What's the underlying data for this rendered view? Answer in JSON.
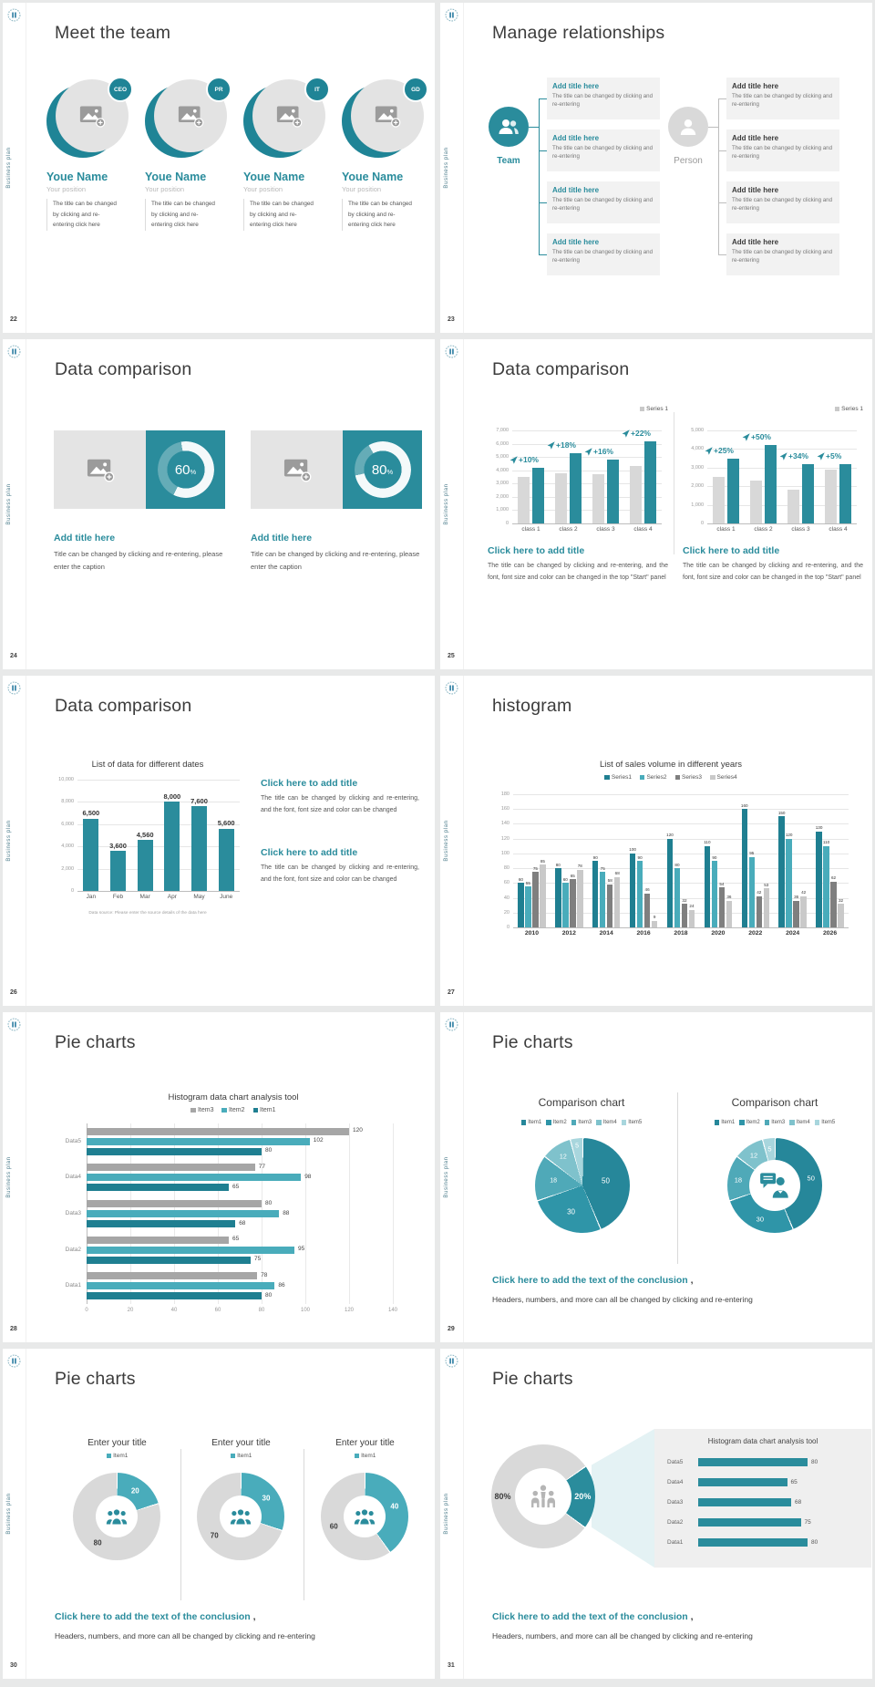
{
  "common": {
    "sidebar_text": "Business plan"
  },
  "colors": {
    "teal": "#2A8C9C",
    "teal_dark": "#1F7F91",
    "teal_light": "#49ACBB",
    "gray_bar": "#D8D8D8",
    "gray_mid": "#A6A6A6",
    "gray_dark": "#7F7F7F",
    "gray_light": "#C9C9C9",
    "donut_gray": "#D9D9D9",
    "heading": "#3B3B3B",
    "body": "#595959",
    "pie_shades": [
      "#26879A",
      "#2F95A8",
      "#4FA9B8",
      "#7FC2CC",
      "#A8D6DD"
    ]
  },
  "s22": {
    "page": "22",
    "title": "Meet the team",
    "members": [
      {
        "badge": "CEO",
        "name": "Youe Name",
        "position": "Your position",
        "desc": "The title can be changed by clicking and re-entering click here"
      },
      {
        "badge": "PR",
        "name": "Youe Name",
        "position": "Your position",
        "desc": "The title can be changed by clicking and re-entering click here"
      },
      {
        "badge": "IT",
        "name": "Youe Name",
        "position": "Your position",
        "desc": "The title can be changed by clicking and re-entering click here"
      },
      {
        "badge": "GD",
        "name": "Youe Name",
        "position": "Your position",
        "desc": "The title can be changed by clicking and re-entering click here"
      }
    ]
  },
  "s23": {
    "page": "23",
    "title": "Manage relationships",
    "team_label": "Team",
    "person_label": "Person",
    "left_boxes": [
      {
        "title": "Add title here",
        "body": "The title can be changed by clicking and re-entering"
      },
      {
        "title": "Add title here",
        "body": "The title can be changed by clicking and re-entering"
      },
      {
        "title": "Add title here",
        "body": "The title can be changed by clicking and re-entering"
      },
      {
        "title": "Add title here",
        "body": "The title can be changed by clicking and re-entering"
      }
    ],
    "right_boxes": [
      {
        "title": "Add title here",
        "body": "The title can be changed by clicking and re-entering"
      },
      {
        "title": "Add title here",
        "body": "The title can be changed by clicking and re-entering"
      },
      {
        "title": "Add title here",
        "body": "The title can be changed by clicking and re-entering"
      },
      {
        "title": "Add title here",
        "body": "The title can be changed by clicking and re-entering"
      }
    ]
  },
  "s24": {
    "page": "24",
    "title": "Data comparison",
    "cards": [
      {
        "percent": "60",
        "unit": "%",
        "heading": "Add title here",
        "body": "Title can be changed by clicking and re-entering, please enter the caption"
      },
      {
        "percent": "80",
        "unit": "%",
        "heading": "Add title here",
        "body": "Title can be changed by clicking and re-entering, please enter the caption"
      }
    ]
  },
  "s25": {
    "page": "25",
    "title": "Data comparison",
    "blocks": [
      {
        "heading": "Click here to add title",
        "body": "The title can be changed by clicking and re-entering, and the font, font size and color can be changed in the top \"Start\" panel"
      },
      {
        "heading": "Click here to add title",
        "body": "The title can be changed by clicking and re-entering, and the font, font size and color can be changed in the top \"Start\" panel"
      }
    ],
    "charts": [
      {
        "type": "bar",
        "legend": "Series 1",
        "ymax": 7000,
        "yticks": [
          "7,000",
          "6,000",
          "5,000",
          "4,000",
          "3,000",
          "2,000",
          "1,000",
          "0"
        ],
        "categories": [
          "class 1",
          "class 2",
          "class 3",
          "class 4"
        ],
        "series": [
          {
            "name": "base",
            "color": "#D8D8D8",
            "values": [
              3500,
              3800,
              3700,
              4300
            ]
          },
          {
            "name": "growth",
            "color": "#2A8C9C",
            "values": [
              4200,
              5300,
              4800,
              6200
            ]
          }
        ],
        "annotations": [
          "+10%",
          "+18%",
          "+16%",
          "+22%"
        ]
      },
      {
        "type": "bar",
        "legend": "Series 1",
        "ymax": 5000,
        "yticks": [
          "5,000",
          "4,000",
          "3,000",
          "2,000",
          "1,000",
          "0"
        ],
        "categories": [
          "class 1",
          "class 2",
          "class 3",
          "class 4"
        ],
        "series": [
          {
            "name": "base",
            "color": "#D8D8D8",
            "values": [
              2500,
              2300,
              1800,
              2900
            ]
          },
          {
            "name": "growth",
            "color": "#2A8C9C",
            "values": [
              3500,
              4200,
              3200,
              3200
            ]
          }
        ],
        "annotations": [
          "+25%",
          "+50%",
          "+34%",
          "+5%"
        ]
      }
    ]
  },
  "s26": {
    "page": "26",
    "title": "Data comparison",
    "chart": {
      "type": "bar",
      "title": "List of data for different dates",
      "ymax": 10000,
      "yticks": [
        "10,000",
        "8,000",
        "6,000",
        "4,000",
        "2,000",
        "0"
      ],
      "categories": [
        "Jan",
        "Feb",
        "Mar",
        "Apr",
        "May",
        "June"
      ],
      "values": [
        6500,
        3600,
        4560,
        8000,
        7600,
        5600
      ],
      "labels": [
        "6,500",
        "3,600",
        "4,560",
        "8,000",
        "7,600",
        "5,600"
      ],
      "source": "Data source: Please enter the source details of the data here"
    },
    "blocks": [
      {
        "heading": "Click here to add title",
        "body": "The title can be changed by clicking and re-entering, and the font, font size and color can be changed"
      },
      {
        "heading": "Click here to add title",
        "body": "The title can be changed by clicking and re-entering, and the font, font size and color can be changed"
      }
    ]
  },
  "s27": {
    "page": "27",
    "title": "histogram",
    "chart": {
      "type": "bar",
      "title": "List of sales volume in different years",
      "ymax": 180,
      "yticks": [
        "180",
        "160",
        "140",
        "120",
        "100",
        "80",
        "60",
        "40",
        "20",
        "0"
      ],
      "categories": [
        "2010",
        "2012",
        "2014",
        "2016",
        "2018",
        "2020",
        "2022",
        "2024",
        "2026"
      ],
      "series": [
        {
          "name": "Series1",
          "color": "#1F7F91",
          "values": [
            60,
            80,
            90,
            100,
            120,
            110,
            160,
            150,
            130
          ]
        },
        {
          "name": "Series2",
          "color": "#49ACBB",
          "values": [
            55,
            60,
            75,
            90,
            80,
            90,
            95,
            120,
            110
          ]
        },
        {
          "name": "Series3",
          "color": "#7F7F7F",
          "values": [
            75,
            65,
            58,
            46,
            32,
            54,
            42,
            36,
            62
          ]
        },
        {
          "name": "Series4",
          "color": "#C9C9C9",
          "values": [
            85,
            78,
            68,
            9,
            24,
            36,
            53,
            42,
            32
          ]
        }
      ]
    }
  },
  "s28": {
    "page": "28",
    "title": "Pie charts",
    "chart": {
      "type": "hbar",
      "title": "Histogram data chart analysis tool",
      "xmax": 140,
      "xticks": [
        "0",
        "20",
        "40",
        "60",
        "80",
        "100",
        "120",
        "140"
      ],
      "categories": [
        "Data5",
        "Data4",
        "Data3",
        "Data2",
        "Data1"
      ],
      "series": [
        {
          "name": "Item3",
          "color": "#A6A6A6",
          "values": [
            120,
            77,
            80,
            65,
            78
          ]
        },
        {
          "name": "Item2",
          "color": "#49ACBB",
          "values": [
            102,
            98,
            88,
            95,
            86
          ]
        },
        {
          "name": "Item1",
          "color": "#1F7F91",
          "values": [
            80,
            65,
            68,
            75,
            80
          ]
        }
      ]
    }
  },
  "s29": {
    "page": "29",
    "title": "Pie charts",
    "panels": [
      {
        "type": "pie",
        "title": "Comparison chart",
        "legend": [
          "Item1",
          "Item2",
          "Item3",
          "Item4",
          "Item5"
        ],
        "values": [
          50,
          30,
          18,
          12,
          5
        ]
      },
      {
        "type": "donut",
        "title": "Comparison chart",
        "legend": [
          "Item1",
          "Item2",
          "Item3",
          "Item4",
          "Item5"
        ],
        "values": [
          50,
          30,
          18,
          12,
          5
        ]
      }
    ],
    "conclusion": {
      "heading": "Click here to add the text of the conclusion",
      "comma": ",",
      "body": "Headers, numbers, and more can all be changed by clicking and re-entering"
    }
  },
  "s30": {
    "page": "30",
    "title": "Pie charts",
    "donuts": [
      {
        "title": "Enter your title",
        "legend": "Item1",
        "value": 20,
        "rest": 80
      },
      {
        "title": "Enter your title",
        "legend": "Item1",
        "value": 30,
        "rest": 70
      },
      {
        "title": "Enter your title",
        "legend": "Item1",
        "value": 40,
        "rest": 60
      }
    ],
    "conclusion": {
      "heading": "Click here to add the text of the conclusion",
      "comma": ",",
      "body": "Headers, numbers, and more can all be changed by clicking and re-entering"
    }
  },
  "s31": {
    "page": "31",
    "title": "Pie charts",
    "donut": {
      "gray_label": "80%",
      "teal_label": "20%",
      "teal_value": 20
    },
    "panel": {
      "title": "Histogram data chart analysis tool",
      "categories": [
        "Data5",
        "Data4",
        "Data3",
        "Data2",
        "Data1"
      ],
      "values": [
        80,
        65,
        68,
        75,
        80
      ]
    },
    "conclusion": {
      "heading": "Click here to add the text of the conclusion",
      "comma": ",",
      "body": "Headers, numbers, and more can all be changed by clicking and re-entering"
    }
  }
}
